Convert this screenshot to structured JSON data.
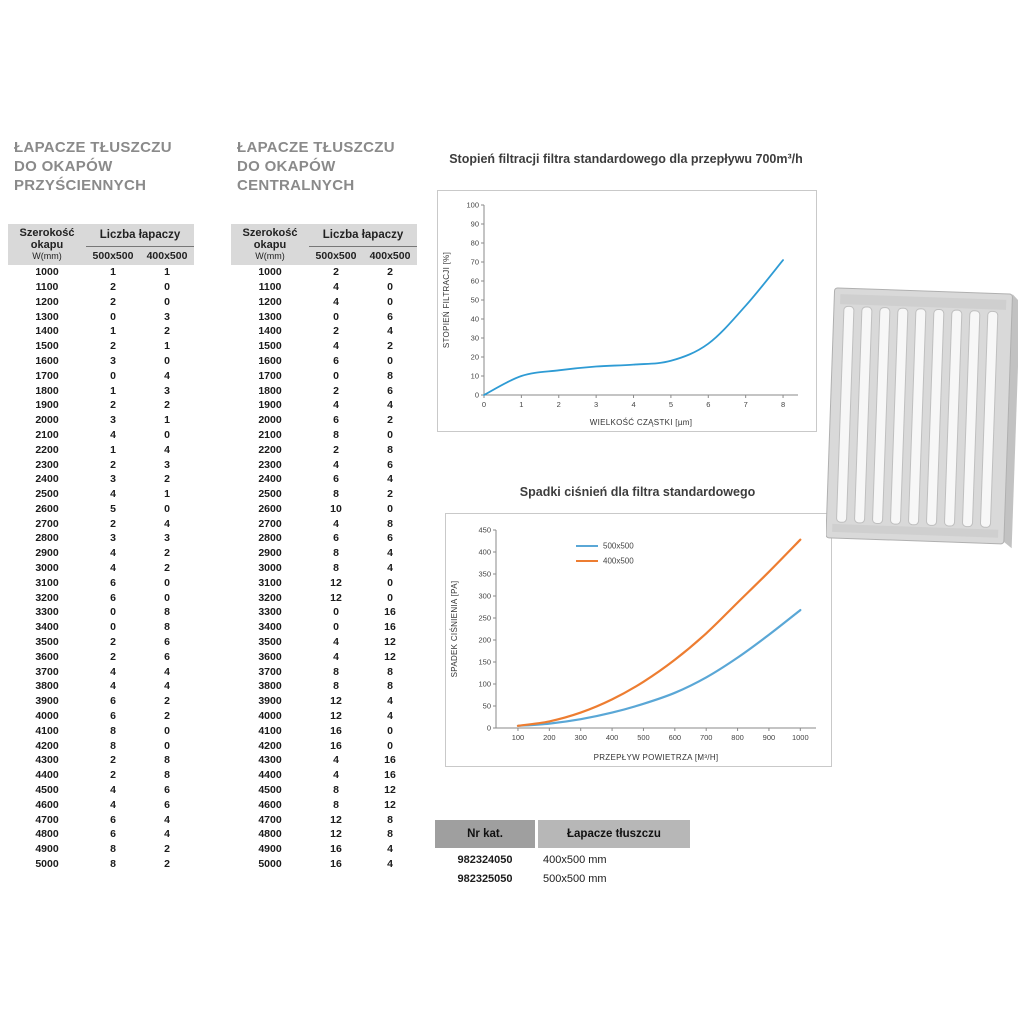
{
  "tables": {
    "wall": {
      "title_lines": [
        "ŁAPACZE TŁUSZCZU",
        "DO OKAPÓW",
        "PRZYŚCIENNYCH"
      ],
      "header": {
        "col1_line1": "Szerokość",
        "col1_line2": "okapu",
        "col1_line3": "W(mm)",
        "group": "Liczba łapaczy",
        "sub1": "500x500",
        "sub2": "400x500"
      },
      "rows": [
        [
          1000,
          1,
          1
        ],
        [
          1100,
          2,
          0
        ],
        [
          1200,
          2,
          0
        ],
        [
          1300,
          0,
          3
        ],
        [
          1400,
          1,
          2
        ],
        [
          1500,
          2,
          1
        ],
        [
          1600,
          3,
          0
        ],
        [
          1700,
          0,
          4
        ],
        [
          1800,
          1,
          3
        ],
        [
          1900,
          2,
          2
        ],
        [
          2000,
          3,
          1
        ],
        [
          2100,
          4,
          0
        ],
        [
          2200,
          1,
          4
        ],
        [
          2300,
          2,
          3
        ],
        [
          2400,
          3,
          2
        ],
        [
          2500,
          4,
          1
        ],
        [
          2600,
          5,
          0
        ],
        [
          2700,
          2,
          4
        ],
        [
          2800,
          3,
          3
        ],
        [
          2900,
          4,
          2
        ],
        [
          3000,
          4,
          2
        ],
        [
          3100,
          6,
          0
        ],
        [
          3200,
          6,
          0
        ],
        [
          3300,
          0,
          8
        ],
        [
          3400,
          0,
          8
        ],
        [
          3500,
          2,
          6
        ],
        [
          3600,
          2,
          6
        ],
        [
          3700,
          4,
          4
        ],
        [
          3800,
          4,
          4
        ],
        [
          3900,
          6,
          2
        ],
        [
          4000,
          6,
          2
        ],
        [
          4100,
          8,
          0
        ],
        [
          4200,
          8,
          0
        ],
        [
          4300,
          2,
          8
        ],
        [
          4400,
          2,
          8
        ],
        [
          4500,
          4,
          6
        ],
        [
          4600,
          4,
          6
        ],
        [
          4700,
          6,
          4
        ],
        [
          4800,
          6,
          4
        ],
        [
          4900,
          8,
          2
        ],
        [
          5000,
          8,
          2
        ]
      ]
    },
    "central": {
      "title_lines": [
        "ŁAPACZE TŁUSZCZU",
        "DO OKAPÓW",
        "CENTRALNYCH"
      ],
      "header": {
        "col1_line1": "Szerokość",
        "col1_line2": "okapu",
        "col1_line3": "W(mm)",
        "group": "Liczba łapaczy",
        "sub1": "500x500",
        "sub2": "400x500"
      },
      "rows": [
        [
          1000,
          2,
          2
        ],
        [
          1100,
          4,
          0
        ],
        [
          1200,
          4,
          0
        ],
        [
          1300,
          0,
          6
        ],
        [
          1400,
          2,
          4
        ],
        [
          1500,
          4,
          2
        ],
        [
          1600,
          6,
          0
        ],
        [
          1700,
          0,
          8
        ],
        [
          1800,
          2,
          6
        ],
        [
          1900,
          4,
          4
        ],
        [
          2000,
          6,
          2
        ],
        [
          2100,
          8,
          0
        ],
        [
          2200,
          2,
          8
        ],
        [
          2300,
          4,
          6
        ],
        [
          2400,
          6,
          4
        ],
        [
          2500,
          8,
          2
        ],
        [
          2600,
          10,
          0
        ],
        [
          2700,
          4,
          8
        ],
        [
          2800,
          6,
          6
        ],
        [
          2900,
          8,
          4
        ],
        [
          3000,
          8,
          4
        ],
        [
          3100,
          12,
          0
        ],
        [
          3200,
          12,
          0
        ],
        [
          3300,
          0,
          16
        ],
        [
          3400,
          0,
          16
        ],
        [
          3500,
          4,
          12
        ],
        [
          3600,
          4,
          12
        ],
        [
          3700,
          8,
          8
        ],
        [
          3800,
          8,
          8
        ],
        [
          3900,
          12,
          4
        ],
        [
          4000,
          12,
          4
        ],
        [
          4100,
          16,
          0
        ],
        [
          4200,
          16,
          0
        ],
        [
          4300,
          4,
          16
        ],
        [
          4400,
          4,
          16
        ],
        [
          4500,
          8,
          12
        ],
        [
          4600,
          8,
          12
        ],
        [
          4700,
          12,
          8
        ],
        [
          4800,
          12,
          8
        ],
        [
          4900,
          16,
          4
        ],
        [
          5000,
          16,
          4
        ]
      ]
    }
  },
  "chart_data": [
    {
      "type": "line",
      "title": "Stopień filtracji filtra standardowego dla przepływu 700m³/h",
      "xlabel": "WIELKOŚĆ CZĄSTKI [µm]",
      "ylabel": "STOPIEŃ FILTRACJI [%]",
      "x": [
        0,
        1,
        2,
        3,
        4,
        5,
        6,
        7,
        8
      ],
      "series": [
        {
          "name": "stopień filtracji",
          "color": "#2e9bd4",
          "width": 1.8,
          "values": [
            0,
            10,
            13,
            15,
            16,
            18,
            27,
            47,
            71
          ]
        }
      ],
      "xlim": [
        0,
        8.4
      ],
      "ylim": [
        0,
        100
      ],
      "xticks": [
        0,
        1,
        2,
        3,
        4,
        5,
        6,
        7,
        8
      ],
      "yticks": [
        0,
        10,
        20,
        30,
        40,
        50,
        60,
        70,
        80,
        90,
        100
      ],
      "legend": false
    },
    {
      "type": "line",
      "title": "Spadki ciśnień dla filtra standardowego",
      "xlabel": "PRZEPŁYW POWIETRZA [M³/H]",
      "ylabel": "SPADEK CIŚNIENIA [PA]",
      "x": [
        100,
        200,
        300,
        400,
        500,
        600,
        700,
        800,
        900,
        1000
      ],
      "series": [
        {
          "name": "500x500",
          "color": "#5aa7d6",
          "width": 2.2,
          "values": [
            5,
            10,
            20,
            35,
            55,
            80,
            115,
            160,
            212,
            268
          ]
        },
        {
          "name": "400x500",
          "color": "#ed7d31",
          "width": 2.2,
          "values": [
            5,
            15,
            35,
            65,
            105,
            155,
            215,
            285,
            355,
            428
          ]
        }
      ],
      "xlim": [
        30,
        1050
      ],
      "ylim": [
        0,
        450
      ],
      "xticks": [
        100,
        200,
        300,
        400,
        500,
        600,
        700,
        800,
        900,
        1000
      ],
      "yticks": [
        0,
        50,
        100,
        150,
        200,
        250,
        300,
        350,
        400,
        450
      ],
      "legend": true,
      "legend_position": "top-center"
    }
  ],
  "catalog": {
    "headers": [
      "Nr kat.",
      "Łapacze tłuszczu"
    ],
    "header_colors": [
      "#9f9f9f",
      "#b7b7b7"
    ],
    "rows": [
      [
        "982324050",
        "400x500 mm"
      ],
      [
        "982325050",
        "500x500 mm"
      ]
    ]
  }
}
